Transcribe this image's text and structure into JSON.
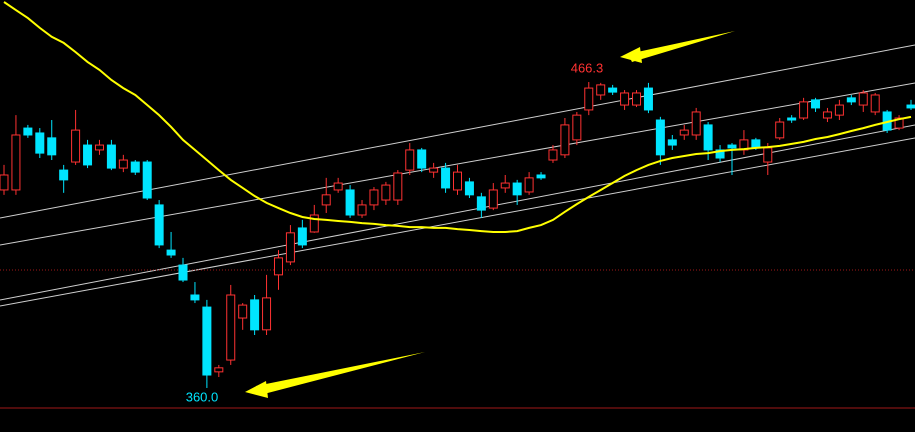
{
  "chart_data": {
    "type": "candlestick",
    "up_color": "#ff3232",
    "down_color": "#00e5ff",
    "ylim": [
      344.7,
      494.8
    ],
    "open": [
      428.8,
      428.8,
      450.3,
      448.6,
      446.9,
      435.7,
      438.5,
      444.4,
      442.7,
      444.4,
      436.4,
      438.5,
      438.5,
      423.6,
      407.9,
      402.7,
      392.3,
      388.1,
      365.6,
      369.7,
      384.3,
      390.6,
      380.2,
      399.3,
      403.8,
      415.6,
      414.2,
      423.6,
      428.8,
      428.8,
      420.1,
      423.6,
      425.3,
      425.3,
      435.7,
      442.7,
      435.0,
      436.4,
      428.8,
      431.6,
      426.4,
      422.5,
      429.5,
      431.2,
      428.1,
      434.0,
      439.2,
      441.0,
      446.2,
      456.6,
      461.8,
      464.2,
      458.3,
      458.3,
      464.2,
      453.1,
      446.2,
      447.9,
      447.9,
      451.4,
      442.7,
      444.4,
      442.7,
      446.2,
      438.5,
      446.9,
      453.8,
      453.8,
      460.1,
      453.8,
      454.8,
      460.8,
      458.3,
      455.9,
      455.9,
      450.3,
      458.3
    ],
    "high": [
      437.5,
      454.8,
      451.4,
      450.3,
      453.1,
      437.5,
      456.6,
      446.2,
      446.2,
      446.2,
      441.0,
      439.2,
      439.2,
      425.3,
      414.2,
      405.2,
      396.8,
      390.6,
      368.0,
      395.8,
      389.5,
      392.3,
      399.3,
      407.9,
      416.6,
      418.4,
      423.6,
      433.0,
      433.0,
      430.5,
      425.3,
      429.8,
      431.6,
      435.7,
      445.1,
      443.4,
      438.2,
      438.2,
      437.5,
      433.0,
      427.8,
      431.2,
      434.0,
      432.3,
      435.0,
      435.0,
      444.4,
      453.8,
      455.9,
      466.3,
      466.0,
      465.3,
      463.5,
      463.5,
      466.0,
      454.2,
      447.9,
      451.4,
      457.3,
      452.4,
      444.4,
      445.1,
      449.6,
      446.9,
      445.1,
      453.8,
      454.8,
      460.8,
      460.8,
      457.3,
      460.1,
      461.8,
      463.5,
      462.5,
      456.6,
      454.8,
      460.1
    ],
    "low": [
      427.1,
      427.1,
      446.9,
      439.9,
      439.2,
      427.8,
      437.5,
      436.4,
      441.0,
      435.7,
      435.0,
      434.0,
      425.3,
      408.6,
      405.2,
      396.8,
      389.5,
      360.0,
      363.8,
      368.0,
      380.2,
      378.4,
      378.4,
      394.1,
      402.7,
      408.6,
      413.9,
      420.8,
      427.8,
      419.1,
      419.1,
      421.8,
      423.6,
      423.6,
      434.0,
      435.0,
      433.0,
      427.8,
      427.1,
      426.0,
      419.1,
      421.8,
      427.8,
      423.6,
      427.1,
      432.3,
      438.2,
      439.9,
      444.4,
      454.8,
      460.1,
      461.8,
      456.6,
      457.6,
      455.5,
      437.5,
      442.7,
      446.2,
      446.2,
      439.2,
      438.5,
      434.0,
      441.0,
      442.7,
      434.0,
      446.2,
      452.1,
      453.1,
      455.9,
      452.4,
      453.1,
      458.3,
      455.9,
      454.8,
      448.6,
      449.6,
      456.6
    ],
    "close": [
      434.0,
      447.9,
      447.9,
      441.6,
      441.0,
      432.3,
      449.6,
      437.5,
      444.4,
      436.4,
      439.2,
      435.0,
      426.0,
      409.7,
      406.2,
      397.5,
      390.6,
      364.5,
      367.0,
      392.3,
      388.8,
      380.2,
      391.3,
      405.2,
      413.9,
      409.7,
      420.1,
      427.1,
      431.2,
      420.1,
      423.6,
      428.8,
      430.5,
      434.7,
      442.7,
      436.4,
      436.4,
      429.5,
      435.0,
      427.1,
      421.8,
      428.8,
      431.2,
      427.1,
      433.0,
      433.0,
      442.7,
      451.4,
      454.8,
      464.2,
      465.3,
      462.8,
      462.5,
      462.5,
      456.6,
      441.0,
      444.4,
      449.6,
      455.9,
      442.7,
      439.9,
      443.4,
      446.2,
      443.4,
      443.4,
      452.4,
      453.1,
      459.4,
      457.3,
      455.9,
      458.3,
      459.4,
      462.5,
      461.8,
      449.6,
      453.8,
      457.3
    ],
    "ma": {
      "color": "#ffff00",
      "values": [
        494.1,
        491.3,
        488.5,
        485.1,
        482.0,
        479.9,
        476.7,
        473.3,
        470.5,
        467.0,
        464.2,
        461.8,
        458.3,
        454.8,
        450.7,
        446.2,
        442.7,
        439.2,
        435.7,
        432.3,
        429.5,
        426.7,
        424.3,
        422.5,
        420.8,
        419.4,
        418.7,
        418.4,
        418.0,
        417.7,
        417.3,
        417.0,
        416.6,
        416.3,
        415.9,
        415.9,
        415.6,
        415.6,
        415.2,
        414.9,
        414.5,
        414.2,
        414.2,
        414.5,
        415.6,
        416.6,
        418.4,
        421.2,
        423.9,
        426.4,
        428.8,
        431.2,
        433.7,
        435.7,
        437.5,
        438.9,
        439.9,
        440.6,
        441.3,
        441.6,
        442.3,
        442.7,
        443.0,
        443.4,
        443.7,
        444.1,
        444.8,
        445.5,
        446.5,
        447.2,
        448.2,
        449.3,
        450.3,
        451.4,
        452.4,
        453.4,
        454.2
      ]
    },
    "annotations": [
      "466.3",
      "360.0"
    ]
  }
}
